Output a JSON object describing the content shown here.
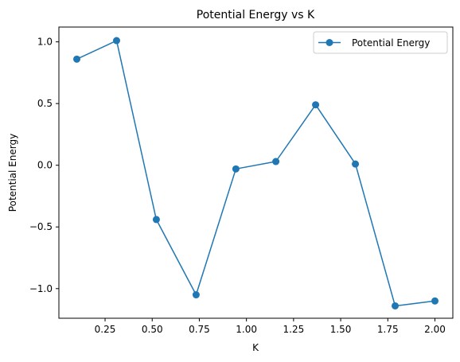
{
  "chart_data": {
    "type": "line",
    "title": "Potential Energy vs K",
    "xlabel": "K",
    "ylabel": "Potential Energy",
    "xlim": [
      0.005,
      2.095
    ],
    "ylim": [
      -1.24,
      1.12
    ],
    "xticks": [
      0.25,
      0.5,
      0.75,
      1.0,
      1.25,
      1.5,
      1.75,
      2.0
    ],
    "xtick_labels": [
      "0.25",
      "0.50",
      "0.75",
      "1.00",
      "1.25",
      "1.50",
      "1.75",
      "2.00"
    ],
    "yticks": [
      1.0,
      0.5,
      0.0,
      -0.5,
      -1.0
    ],
    "ytick_labels": [
      "1.0",
      "0.5",
      "0.0",
      "−0.5",
      "−1.0"
    ],
    "grid": false,
    "legend_position": "top-right",
    "series": [
      {
        "name": "Potential Energy",
        "color": "#1f77b4",
        "marker": "circle",
        "x": [
          0.1,
          0.311,
          0.522,
          0.733,
          0.944,
          1.156,
          1.367,
          1.578,
          1.789,
          2.0
        ],
        "y": [
          0.86,
          1.01,
          -0.44,
          -1.05,
          -0.03,
          0.03,
          0.49,
          0.01,
          -1.14,
          -1.1
        ]
      }
    ]
  }
}
